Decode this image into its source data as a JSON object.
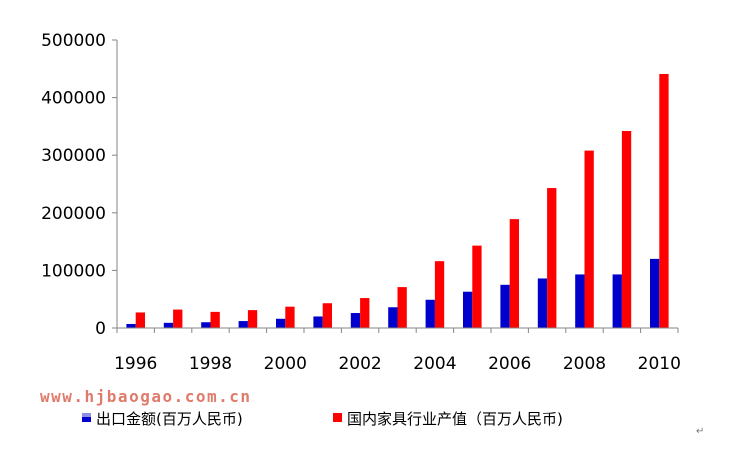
{
  "chart_data": {
    "type": "bar",
    "x": [
      1996,
      1997,
      1998,
      1999,
      2000,
      2001,
      2002,
      2003,
      2004,
      2005,
      2006,
      2007,
      2008,
      2009,
      2010
    ],
    "x_tick_labels": [
      "1996",
      "1998",
      "2000",
      "2002",
      "2004",
      "2006",
      "2008",
      "2010"
    ],
    "y_tick_labels": [
      "0",
      "100000",
      "200000",
      "300000",
      "400000",
      "500000"
    ],
    "ylim": [
      0,
      500000
    ],
    "grid": false,
    "legend_position": "bottom",
    "series": [
      {
        "name": "出口金额(百万人民币)",
        "color": "#0000cc",
        "values": [
          7000,
          9000,
          10000,
          12000,
          16000,
          20000,
          26000,
          36000,
          49000,
          63000,
          75000,
          86000,
          93000,
          93000,
          120000
        ]
      },
      {
        "name": "国内家具行业产值（百万人民币)",
        "color": "#ff0000",
        "values": [
          27000,
          32000,
          28000,
          31000,
          37000,
          43000,
          52000,
          71000,
          116000,
          143000,
          189000,
          243000,
          308000,
          342000,
          441000
        ]
      }
    ]
  },
  "watermark": "www.hjbaogao.com.cn",
  "return_mark": "↵"
}
